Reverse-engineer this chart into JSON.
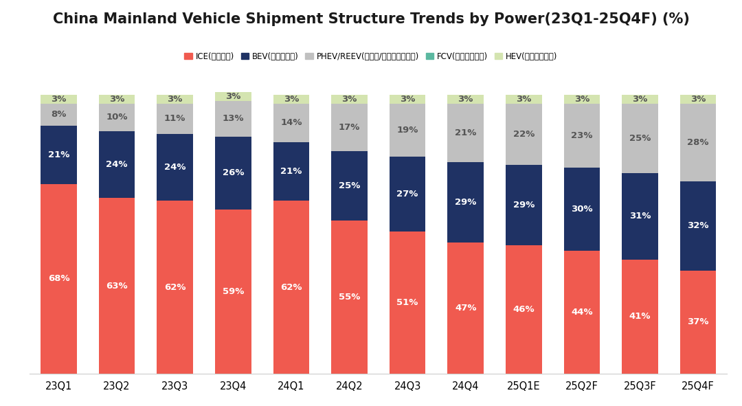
{
  "title": "China Mainland Vehicle Shipment Structure Trends by Power(23Q1-25Q4F) (%)",
  "categories": [
    "23Q1",
    "23Q2",
    "23Q3",
    "23Q4",
    "24Q1",
    "24Q2",
    "24Q3",
    "24Q4",
    "25Q1E",
    "25Q2F",
    "25Q3F",
    "25Q4F"
  ],
  "series": {
    "ICE": [
      68,
      63,
      62,
      59,
      62,
      55,
      51,
      47,
      46,
      44,
      41,
      37
    ],
    "BEV": [
      21,
      24,
      24,
      26,
      21,
      25,
      27,
      29,
      29,
      30,
      31,
      32
    ],
    "PHEV": [
      8,
      10,
      11,
      13,
      14,
      17,
      19,
      21,
      22,
      23,
      25,
      28
    ],
    "FCV": [
      0,
      0,
      0,
      0,
      0,
      0,
      0,
      0,
      0,
      0,
      0,
      0
    ],
    "HEV": [
      3,
      3,
      3,
      3,
      3,
      3,
      3,
      3,
      3,
      3,
      3,
      3
    ]
  },
  "colors": {
    "ICE": "#F05A4F",
    "BEV": "#1F3264",
    "PHEV": "#C0C0C0",
    "FCV": "#5BB8A0",
    "HEV": "#D4E4B0"
  },
  "legend_labels": {
    "ICE": "ICE(燃油汽车)",
    "BEV": "BEV(纯电动汽车)",
    "PHEV": "PHEV/REEV(插电式/增程式混动汽车)",
    "FCV": "FCV(燃料电池汽车)",
    "HEV": "HEV(油电混动汽车)"
  },
  "background_color": "#FFFFFF",
  "title_fontsize": 15,
  "label_fontsize": 9.5,
  "tick_fontsize": 10.5
}
